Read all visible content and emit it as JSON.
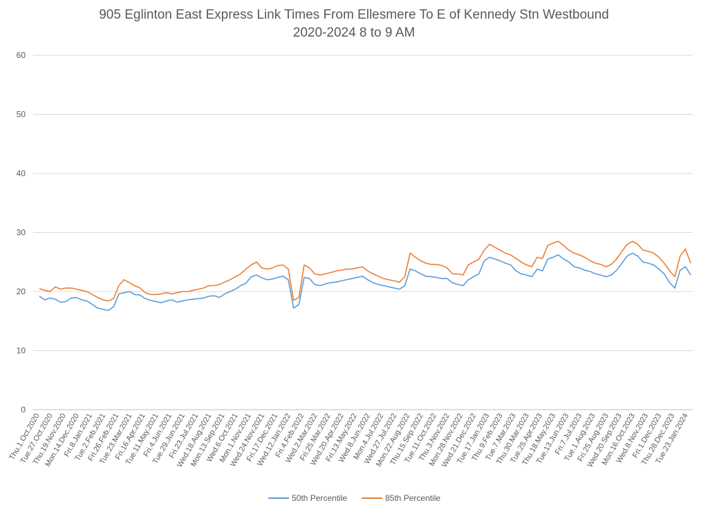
{
  "chart_data": {
    "type": "line",
    "title": "905 Eglinton East Express Link Times From Ellesmere To E of Kennedy Stn Westbound",
    "subtitle": "2020-2024 8 to 9 AM",
    "xlabel": "",
    "ylabel": "",
    "ylim": [
      0,
      60
    ],
    "yticks": [
      "0",
      "10",
      "20",
      "30",
      "40",
      "50",
      "60"
    ],
    "grid": "horizontal",
    "legend": "bottom",
    "x_tick_labels": [
      "Thu.1.Oct.2020",
      "Tue.27.Oct.2020",
      "Thu.19.Nov.2020",
      "Mon.14.Dec.2020",
      "Fri.8.Jan.2021",
      "Tue.2.Feb.2021",
      "Fri.26.Feb.2021",
      "Tue.23.Mar.2021",
      "Fri.16.Apr.2021",
      "Tue.11.May.2021",
      "Fri.4.Jun.2021",
      "Tue.29.Jun.2021",
      "Fri.23.Jul.2021",
      "Wed.18.Aug.2021",
      "Mon.13.Sep.2021",
      "Wed.6.Oct.2021",
      "Mon.1.Nov.2021",
      "Wed.24.Nov.2021",
      "Fri.17.Dec.2021",
      "Wed.12.Jan.2022",
      "Fri.4.Feb.2022",
      "Wed.2.Mar.2022",
      "Fri.25.Mar.2022",
      "Wed.20.Apr.2022",
      "Fri.13.May.2022",
      "Wed.8.Jun.2022",
      "Mon.4.Jul.2022",
      "Wed.27.Jul.2022",
      "Mon.22.Aug.2022",
      "Thu.15.Sep.2022",
      "Tue.11.Oct.2022",
      "Thu.3.Nov.2022",
      "Mon.28.Nov.2022",
      "Wed.21.Dec.2022",
      "Tue.17.Jan.2023",
      "Thu.9.Feb.2023",
      "Tue.7.Mar.2023",
      "Thu.30.Mar.2023",
      "Tue.25.Apr.2023",
      "Thu.18.May.2023",
      "Tue.13.Jun.2023",
      "Fri.7.Jul.2023",
      "Tue.1.Aug.2023",
      "Fri.25.Aug.2023",
      "Wed.20.Sep.2023",
      "Mon.16.Oct.2023",
      "Wed.8.Nov.2023",
      "Fri.1.Dec.2023",
      "Thu.28.Dec.2023",
      "Tue.23.Jan.2024"
    ],
    "series": [
      {
        "name": "50th Percentile",
        "color": "#5B9BD5",
        "values": [
          19.2,
          18.6,
          18.9,
          18.7,
          18.2,
          18.3,
          18.9,
          19.0,
          18.6,
          18.4,
          17.8,
          17.2,
          17.0,
          16.8,
          17.4,
          19.6,
          19.8,
          20.0,
          19.5,
          19.4,
          18.8,
          18.5,
          18.3,
          18.1,
          18.4,
          18.6,
          18.2,
          18.4,
          18.6,
          18.7,
          18.8,
          18.9,
          19.2,
          19.3,
          19.0,
          19.6,
          20.0,
          20.4,
          21.0,
          21.4,
          22.5,
          22.8,
          22.3,
          22.0,
          22.1,
          22.4,
          22.6,
          22.0,
          17.2,
          17.8,
          22.4,
          22.2,
          21.2,
          21.0,
          21.3,
          21.5,
          21.6,
          21.8,
          22.0,
          22.2,
          22.4,
          22.6,
          22.0,
          21.5,
          21.2,
          21.0,
          20.8,
          20.6,
          20.4,
          21.0,
          23.8,
          23.5,
          23.0,
          22.6,
          22.5,
          22.4,
          22.2,
          22.2,
          21.5,
          21.2,
          21.0,
          22.0,
          22.5,
          23.0,
          25.2,
          25.8,
          25.5,
          25.2,
          24.8,
          24.5,
          23.5,
          23.0,
          22.8,
          22.5,
          23.8,
          23.5,
          25.5,
          25.8,
          26.2,
          25.5,
          25.0,
          24.2,
          24.0,
          23.6,
          23.4,
          23.0,
          22.8,
          22.5,
          22.8,
          23.6,
          24.8,
          26.0,
          26.5,
          26.0,
          25.0,
          24.8,
          24.5,
          23.8,
          23.0,
          21.5,
          20.6,
          23.6,
          24.2,
          22.8
        ]
      },
      {
        "name": "85th Percentile",
        "color": "#ED7D31",
        "values": [
          20.5,
          20.2,
          20.0,
          20.8,
          20.4,
          20.6,
          20.6,
          20.4,
          20.2,
          20.0,
          19.5,
          19.0,
          18.6,
          18.4,
          18.8,
          21.0,
          22.0,
          21.5,
          21.0,
          20.6,
          19.8,
          19.5,
          19.5,
          19.6,
          19.8,
          19.6,
          19.8,
          20.0,
          20.0,
          20.2,
          20.4,
          20.6,
          21.0,
          21.0,
          21.2,
          21.6,
          22.0,
          22.5,
          23.0,
          23.8,
          24.5,
          25.0,
          24.0,
          23.8,
          24.0,
          24.4,
          24.5,
          23.8,
          18.5,
          19.0,
          24.5,
          24.0,
          23.0,
          22.8,
          23.0,
          23.2,
          23.5,
          23.6,
          23.8,
          23.8,
          24.0,
          24.2,
          23.5,
          23.0,
          22.6,
          22.2,
          22.0,
          21.8,
          21.6,
          22.5,
          26.5,
          25.8,
          25.2,
          24.8,
          24.6,
          24.6,
          24.4,
          24.0,
          23.0,
          23.0,
          22.8,
          24.5,
          25.0,
          25.5,
          27.0,
          28.0,
          27.5,
          27.0,
          26.5,
          26.2,
          25.6,
          25.0,
          24.5,
          24.2,
          25.8,
          25.6,
          27.8,
          28.2,
          28.5,
          27.8,
          27.0,
          26.5,
          26.2,
          25.8,
          25.2,
          24.8,
          24.6,
          24.2,
          24.6,
          25.5,
          26.8,
          28.0,
          28.5,
          28.0,
          27.0,
          26.8,
          26.5,
          25.8,
          24.8,
          23.5,
          22.5,
          26.0,
          27.2,
          24.8
        ]
      }
    ]
  }
}
